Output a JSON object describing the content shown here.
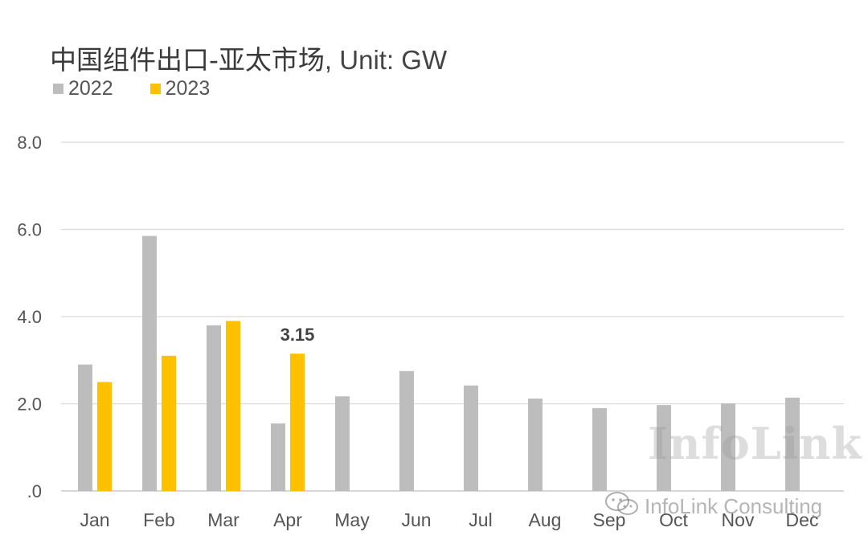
{
  "title": {
    "main": "中国组件出口-亚太市场",
    "unit": ", Unit: GW"
  },
  "legend": [
    {
      "name": "2022",
      "color": "#bdbdbd"
    },
    {
      "name": "2023",
      "color": "#fdc100"
    }
  ],
  "watermark": {
    "logo": "InfoLink",
    "footer": "InfoLink Consulting",
    "icon": "wechat-icon"
  },
  "chart_data": {
    "type": "bar",
    "categories": [
      "Jan",
      "Feb",
      "Mar",
      "Apr",
      "May",
      "Jun",
      "Jul",
      "Aug",
      "Sep",
      "Oct",
      "Nov",
      "Dec"
    ],
    "series": [
      {
        "name": "2022",
        "color": "#bdbdbd",
        "values": [
          2.9,
          5.85,
          3.8,
          1.55,
          2.17,
          2.75,
          2.42,
          2.12,
          1.9,
          1.97,
          2.01,
          2.14
        ]
      },
      {
        "name": "2023",
        "color": "#fdc100",
        "values": [
          2.5,
          3.1,
          3.9,
          3.15,
          null,
          null,
          null,
          null,
          null,
          null,
          null,
          null
        ]
      }
    ],
    "yticks": [
      ".0",
      "2.0",
      "4.0",
      "6.0",
      "8.0"
    ],
    "ylim": [
      0,
      8
    ],
    "grid": true,
    "legend_position": "top-left",
    "data_labels": [
      {
        "series": "2023",
        "category": "Apr",
        "text": "3.15"
      }
    ]
  }
}
